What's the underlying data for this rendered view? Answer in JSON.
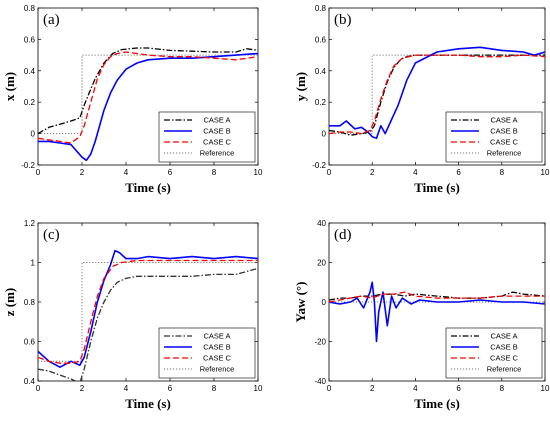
{
  "chart_data": [
    {
      "type": "line",
      "panel_label": "(a)",
      "xlabel": "Time (s)",
      "ylabel": "x (m)",
      "xlim": [
        0,
        10
      ],
      "ylim": [
        -0.2,
        0.8
      ],
      "xticks": [
        0,
        2,
        4,
        6,
        8,
        10
      ],
      "yticks": [
        -0.2,
        0,
        0.2,
        0.4,
        0.6,
        0.8
      ],
      "grid": false,
      "legend_position": "bottom-right",
      "series": [
        {
          "name": "CASE A",
          "style": "dashdot",
          "color": "#000000",
          "x": [
            0,
            0.5,
            1,
            1.5,
            1.9,
            2.1,
            2.3,
            2.6,
            3.0,
            3.4,
            3.8,
            4.5,
            5.0,
            6.0,
            7.0,
            8.0,
            9.0,
            9.5,
            10
          ],
          "y": [
            0.0,
            0.04,
            0.06,
            0.08,
            0.1,
            0.18,
            0.25,
            0.35,
            0.45,
            0.51,
            0.535,
            0.545,
            0.545,
            0.53,
            0.525,
            0.52,
            0.52,
            0.54,
            0.53
          ]
        },
        {
          "name": "CASE B",
          "style": "solid",
          "color": "#0000ff",
          "x": [
            0,
            0.5,
            1,
            1.5,
            2.0,
            2.2,
            2.4,
            2.6,
            2.8,
            3.0,
            3.3,
            3.6,
            4.0,
            4.5,
            5.0,
            6.0,
            7.0,
            8.0,
            9.0,
            10
          ],
          "y": [
            -0.05,
            -0.05,
            -0.06,
            -0.07,
            -0.15,
            -0.17,
            -0.13,
            -0.05,
            0.05,
            0.15,
            0.26,
            0.34,
            0.41,
            0.45,
            0.47,
            0.48,
            0.48,
            0.49,
            0.5,
            0.51
          ]
        },
        {
          "name": "CASE C",
          "style": "dashed",
          "color": "#ff0000",
          "x": [
            0,
            0.5,
            1,
            1.5,
            1.9,
            2.1,
            2.4,
            2.7,
            3.0,
            3.3,
            3.6,
            4.0,
            5.0,
            6.0,
            7.0,
            8.0,
            9.0,
            10
          ],
          "y": [
            -0.03,
            -0.04,
            -0.05,
            -0.06,
            -0.02,
            0.05,
            0.2,
            0.35,
            0.44,
            0.49,
            0.51,
            0.52,
            0.5,
            0.49,
            0.49,
            0.48,
            0.47,
            0.49
          ]
        },
        {
          "name": "Reference",
          "style": "dotted",
          "color": "#777777",
          "x": [
            0,
            2,
            2,
            10
          ],
          "y": [
            0,
            0,
            0.5,
            0.5
          ]
        }
      ]
    },
    {
      "type": "line",
      "panel_label": "(b)",
      "xlabel": "Time (s)",
      "ylabel": "y (m)",
      "xlim": [
        0,
        10
      ],
      "ylim": [
        -0.2,
        0.8
      ],
      "xticks": [
        0,
        2,
        4,
        6,
        8,
        10
      ],
      "yticks": [
        -0.2,
        0,
        0.2,
        0.4,
        0.6,
        0.8
      ],
      "grid": false,
      "legend_position": "bottom-right",
      "series": [
        {
          "name": "CASE A",
          "style": "dashdot",
          "color": "#000000",
          "x": [
            0,
            0.5,
            1,
            1.5,
            1.9,
            2.1,
            2.4,
            2.7,
            3.0,
            3.3,
            3.6,
            4.0,
            5.0,
            6.0,
            7.0,
            8.0,
            9.0,
            10
          ],
          "y": [
            0.02,
            0.01,
            -0.01,
            0.0,
            0.01,
            0.05,
            0.2,
            0.33,
            0.42,
            0.47,
            0.49,
            0.5,
            0.5,
            0.5,
            0.5,
            0.5,
            0.5,
            0.5
          ]
        },
        {
          "name": "CASE B",
          "style": "solid",
          "color": "#0000ff",
          "x": [
            0,
            0.5,
            0.8,
            1.2,
            1.5,
            1.8,
            2.0,
            2.2,
            2.4,
            2.6,
            2.9,
            3.2,
            3.6,
            4.0,
            5.0,
            6.0,
            7.0,
            8.0,
            9.0,
            9.5,
            10
          ],
          "y": [
            0.05,
            0.05,
            0.08,
            0.03,
            0.04,
            0.01,
            -0.02,
            -0.03,
            0.05,
            0.0,
            0.09,
            0.18,
            0.34,
            0.45,
            0.52,
            0.54,
            0.55,
            0.53,
            0.52,
            0.5,
            0.52
          ]
        },
        {
          "name": "CASE C",
          "style": "dashed",
          "color": "#ff0000",
          "x": [
            0,
            0.5,
            1,
            1.5,
            1.9,
            2.1,
            2.4,
            2.7,
            3.0,
            3.4,
            4.0,
            5.0,
            6.0,
            7.0,
            8.0,
            9.0,
            10
          ],
          "y": [
            0.0,
            0.01,
            0.01,
            0.0,
            0.02,
            0.08,
            0.22,
            0.34,
            0.43,
            0.48,
            0.5,
            0.5,
            0.5,
            0.49,
            0.49,
            0.5,
            0.49
          ]
        },
        {
          "name": "Reference",
          "style": "dotted",
          "color": "#777777",
          "x": [
            0,
            2,
            2,
            10
          ],
          "y": [
            0,
            0,
            0.5,
            0.5
          ]
        }
      ]
    },
    {
      "type": "line",
      "panel_label": "(c)",
      "xlabel": "Time (s)",
      "ylabel": "z (m)",
      "xlim": [
        0,
        10
      ],
      "ylim": [
        0.4,
        1.2
      ],
      "xticks": [
        0,
        2,
        4,
        6,
        8,
        10
      ],
      "yticks": [
        0.4,
        0.6,
        0.8,
        1,
        1.2
      ],
      "grid": false,
      "legend_position": "bottom-right",
      "series": [
        {
          "name": "CASE A",
          "style": "dashdot",
          "color": "#333333",
          "x": [
            0,
            0.5,
            1,
            1.5,
            1.9,
            2.1,
            2.4,
            2.7,
            3.0,
            3.3,
            3.6,
            4.0,
            4.5,
            5.0,
            6.0,
            7.0,
            8.0,
            9.0,
            10
          ],
          "y": [
            0.46,
            0.45,
            0.43,
            0.41,
            0.39,
            0.46,
            0.6,
            0.72,
            0.8,
            0.86,
            0.9,
            0.92,
            0.93,
            0.93,
            0.93,
            0.93,
            0.94,
            0.94,
            0.97
          ]
        },
        {
          "name": "CASE B",
          "style": "solid",
          "color": "#0000ff",
          "x": [
            0,
            0.5,
            1,
            1.5,
            1.9,
            2.1,
            2.4,
            2.7,
            3.0,
            3.3,
            3.5,
            3.7,
            4.0,
            4.5,
            5.0,
            6.0,
            7.0,
            8.0,
            9.0,
            10
          ],
          "y": [
            0.55,
            0.5,
            0.47,
            0.5,
            0.48,
            0.52,
            0.65,
            0.8,
            0.91,
            0.99,
            1.06,
            1.05,
            1.02,
            1.02,
            1.03,
            1.02,
            1.03,
            1.02,
            1.03,
            1.02
          ]
        },
        {
          "name": "CASE C",
          "style": "dashed",
          "color": "#ff0000",
          "x": [
            0,
            0.5,
            1,
            1.5,
            1.9,
            2.1,
            2.4,
            2.7,
            3.0,
            3.4,
            3.8,
            4.5,
            5.0,
            6.0,
            7.0,
            8.0,
            9.0,
            10
          ],
          "y": [
            0.52,
            0.5,
            0.49,
            0.49,
            0.5,
            0.56,
            0.7,
            0.83,
            0.92,
            0.98,
            1.0,
            1.01,
            1.01,
            1.01,
            1.01,
            1.01,
            1.01,
            1.01
          ]
        },
        {
          "name": "Reference",
          "style": "dotted",
          "color": "#777777",
          "x": [
            0,
            2,
            2,
            10
          ],
          "y": [
            0.5,
            0.5,
            1.0,
            1.0
          ]
        }
      ]
    },
    {
      "type": "line",
      "panel_label": "(d)",
      "xlabel": "Time (s)",
      "ylabel": "Yaw (°)",
      "xlim": [
        0,
        10
      ],
      "ylim": [
        -40,
        40
      ],
      "xticks": [
        0,
        2,
        4,
        6,
        8,
        10
      ],
      "yticks": [
        -40,
        -20,
        0,
        20,
        40
      ],
      "grid": false,
      "legend_position": "bottom-right",
      "series": [
        {
          "name": "CASE A",
          "style": "dashdot",
          "color": "#000000",
          "x": [
            0,
            0.5,
            1,
            1.5,
            2.0,
            2.5,
            3.0,
            3.5,
            4.0,
            5.0,
            6.0,
            7.0,
            8.0,
            8.5,
            9.0,
            10
          ],
          "y": [
            1,
            2,
            2,
            3,
            3,
            4,
            4,
            3,
            4,
            3,
            2,
            2,
            3,
            5,
            4,
            3
          ]
        },
        {
          "name": "CASE B",
          "style": "solid",
          "color": "#0000ff",
          "x": [
            0,
            0.5,
            1.0,
            1.3,
            1.6,
            1.9,
            2.0,
            2.1,
            2.2,
            2.3,
            2.5,
            2.7,
            2.9,
            3.1,
            3.4,
            3.8,
            4.2,
            5.0,
            6.0,
            7.0,
            8.0,
            9.0,
            10
          ],
          "y": [
            0,
            -1,
            0,
            2,
            -3,
            5,
            10,
            0,
            -20,
            -5,
            5,
            -12,
            3,
            -3,
            2,
            -1,
            1,
            0,
            0,
            1,
            0,
            0,
            -1
          ]
        },
        {
          "name": "CASE C",
          "style": "dashed",
          "color": "#ff0000",
          "x": [
            0,
            0.5,
            1,
            1.5,
            2.0,
            2.5,
            3.0,
            3.5,
            4.0,
            5.0,
            6.0,
            7.0,
            8.0,
            9.0,
            10
          ],
          "y": [
            0,
            1,
            2,
            3,
            2,
            4,
            4,
            5,
            3,
            2,
            2,
            2,
            3,
            3,
            3
          ]
        },
        {
          "name": "Reference",
          "style": "dotted",
          "color": "#777777",
          "x": [
            0,
            10
          ],
          "y": [
            0,
            0
          ]
        }
      ]
    }
  ]
}
